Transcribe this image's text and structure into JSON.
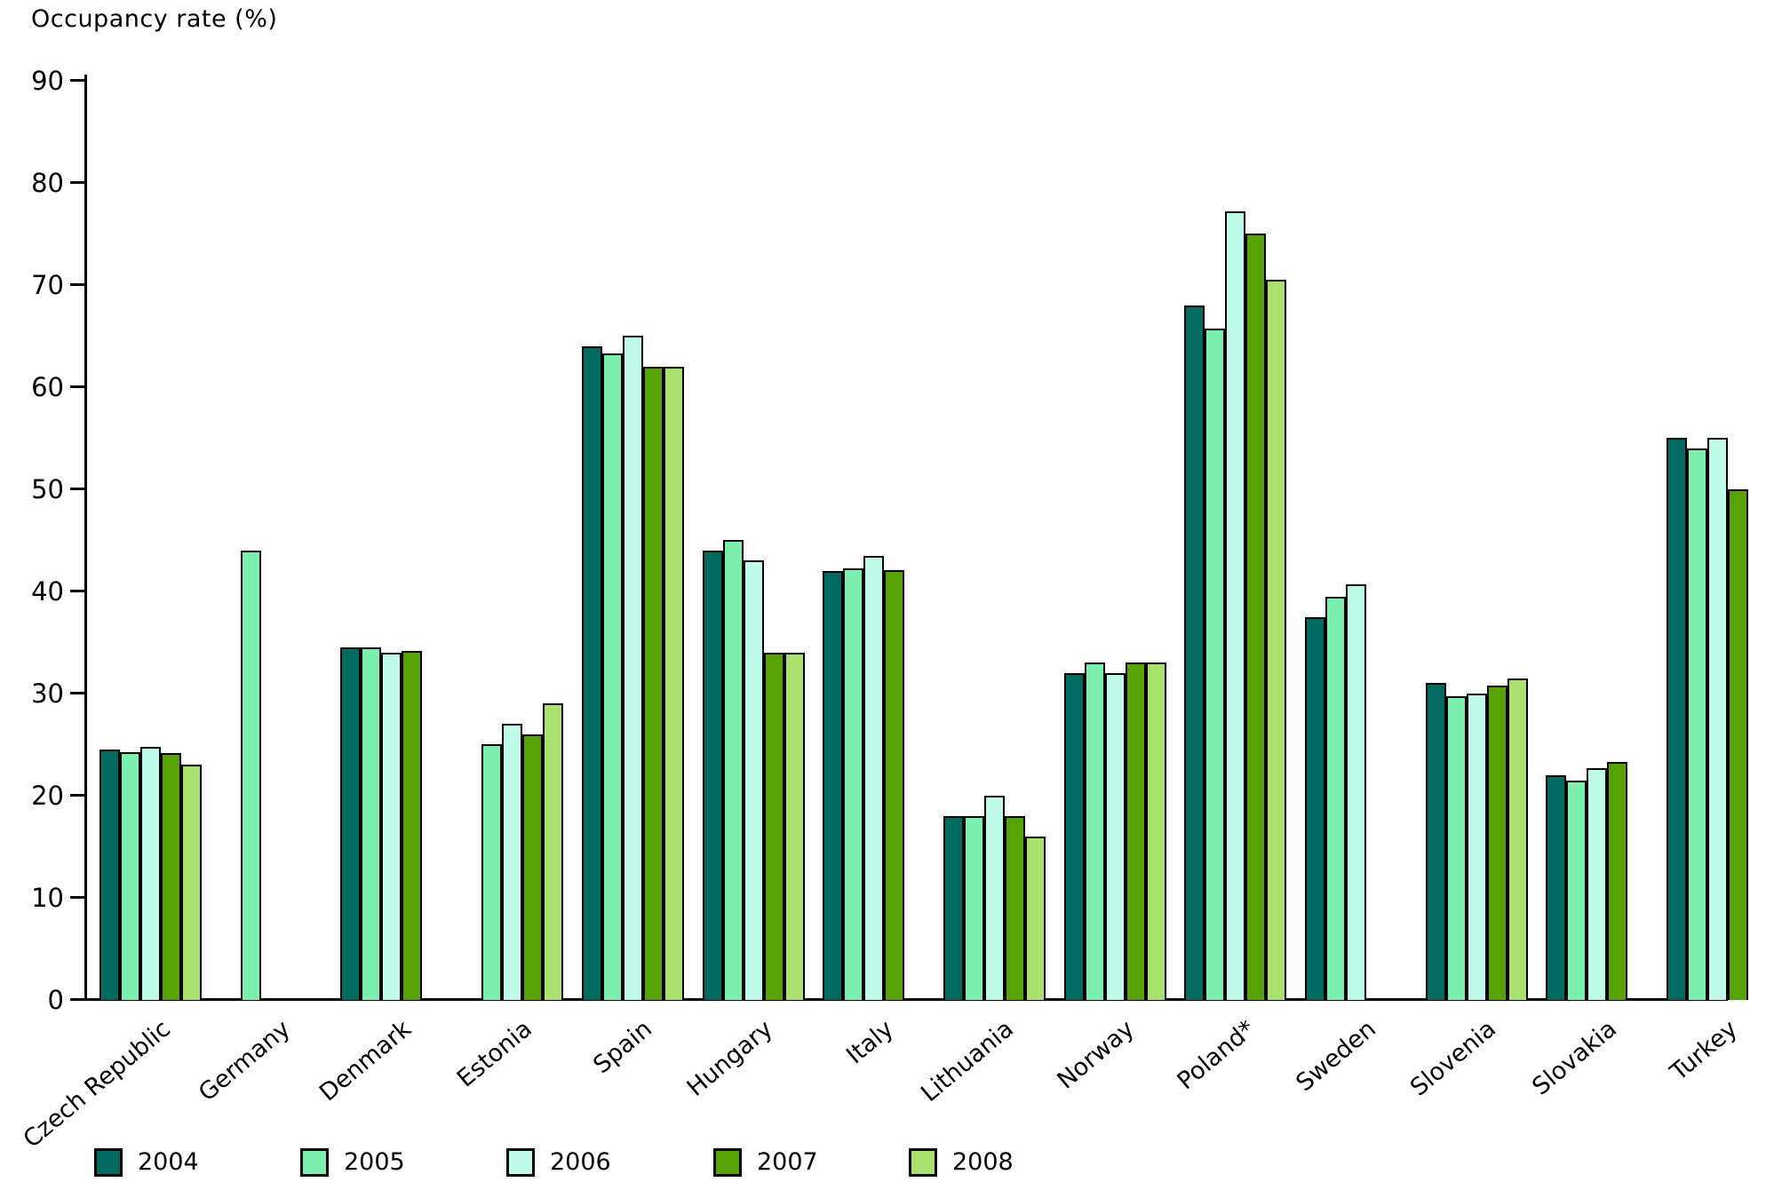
{
  "header": {
    "title": "Occupancy rate (%)"
  },
  "chart_data": {
    "type": "bar",
    "title": "Occupancy rate (%)",
    "xlabel": "",
    "ylabel": "Occupancy rate (%)",
    "ylim": [
      0,
      90
    ],
    "yticks": [
      0,
      10,
      20,
      30,
      40,
      50,
      60,
      70,
      80,
      90
    ],
    "grid": false,
    "legend_position": "bottom",
    "categories": [
      "Czech Republic",
      "Germany",
      "Denmark",
      "Estonia",
      "Spain",
      "Hungary",
      "Italy",
      "Lithuania",
      "Norway",
      "Poland*",
      "Sweden",
      "Slovenia",
      "Slovakia",
      "Turkey"
    ],
    "series": [
      {
        "name": "2004",
        "color": "#016A60",
        "values": [
          24.5,
          null,
          34.5,
          null,
          64,
          44,
          42,
          18,
          32,
          68,
          37.5,
          31,
          22,
          55
        ]
      },
      {
        "name": "2005",
        "color": "#7BF0AE",
        "values": [
          24.3,
          44,
          34.5,
          25,
          63.3,
          45,
          42.3,
          18,
          33,
          65.7,
          39.5,
          29.7,
          21.5,
          54
        ]
      },
      {
        "name": "2006",
        "color": "#BEFBE9",
        "values": [
          24.8,
          null,
          34,
          27,
          65,
          43,
          43.5,
          20,
          32,
          77.2,
          40.7,
          30,
          22.7,
          55
        ]
      },
      {
        "name": "2007",
        "color": "#57A305",
        "values": [
          24.2,
          null,
          34.2,
          26,
          62,
          34,
          42.1,
          18,
          33,
          75,
          null,
          30.8,
          23.3,
          50
        ]
      },
      {
        "name": "2008",
        "color": "#A9E06E",
        "values": [
          23,
          null,
          null,
          29,
          62,
          34,
          null,
          16,
          33,
          70.5,
          null,
          31.5,
          null,
          null
        ]
      }
    ]
  }
}
